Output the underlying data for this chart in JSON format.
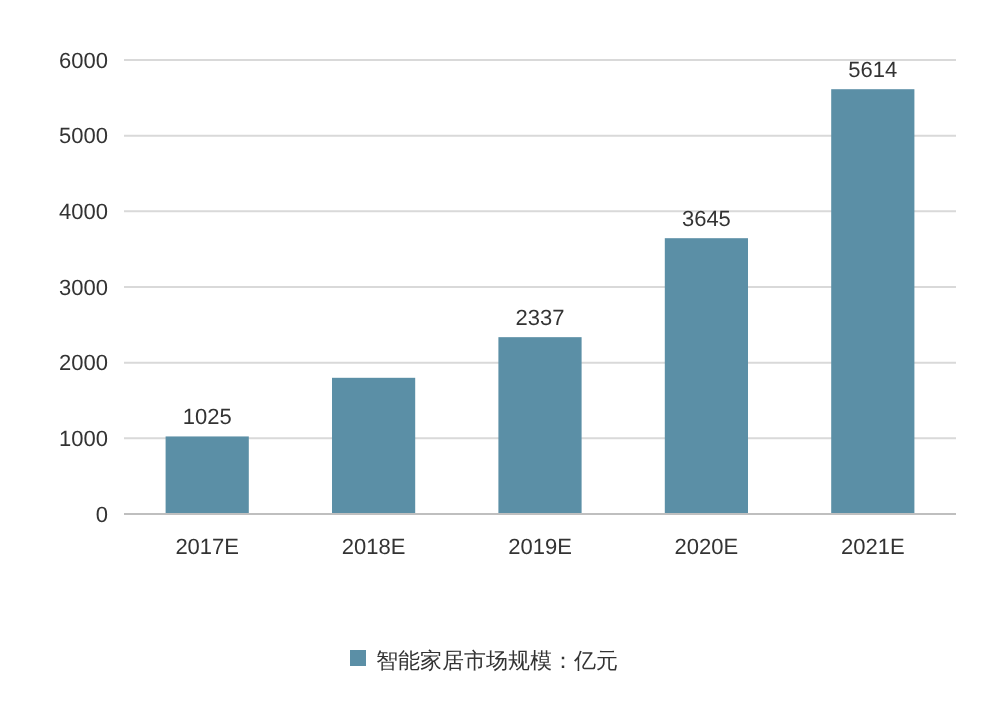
{
  "chart_data": {
    "type": "bar",
    "categories": [
      "2017E",
      "2018E",
      "2019E",
      "2020E",
      "2021E"
    ],
    "series": [
      {
        "name": "智能家居市场规模：亿元",
        "color": "#5b8fa6",
        "values": [
          1025,
          1800,
          2337,
          3645,
          5614
        ],
        "value_labels": [
          "1025",
          null,
          "2337",
          "3645",
          "5614"
        ]
      }
    ],
    "ylim": [
      0,
      6000
    ],
    "yticks": [
      0,
      1000,
      2000,
      3000,
      4000,
      5000,
      6000
    ],
    "grid": "y",
    "legend": "bottom"
  }
}
